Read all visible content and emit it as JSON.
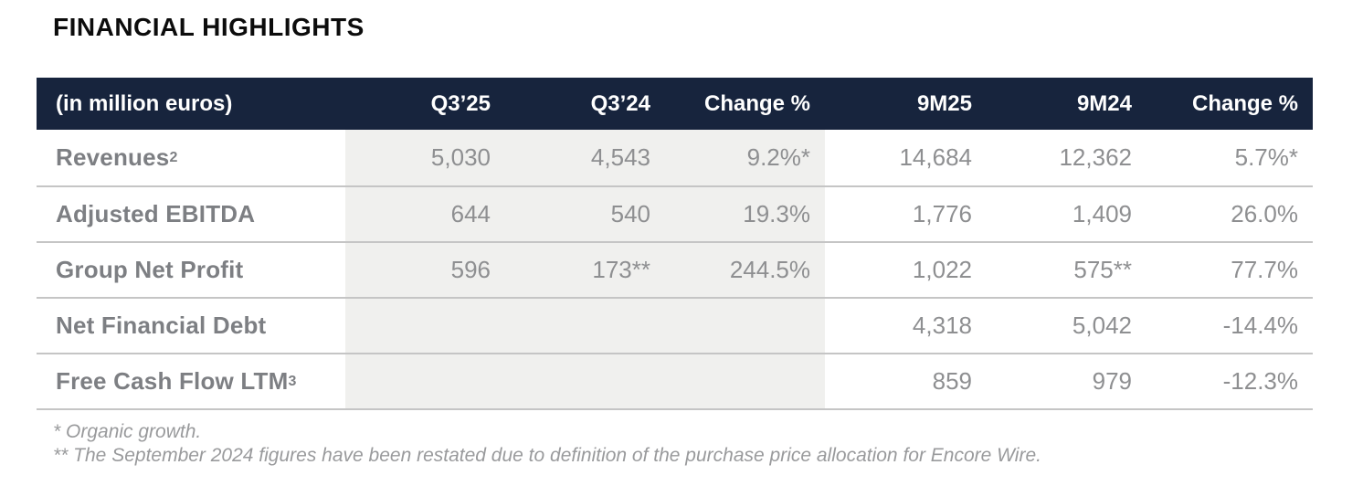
{
  "page": {
    "title": "FINANCIAL HIGHLIGHTS"
  },
  "colors": {
    "header_background": "#17243d",
    "header_text": "#ffffff",
    "quarter_columns_shading": "#f0f0ee",
    "row_separator": "#c5c5c5",
    "label_text": "#7d7f83",
    "value_text": "#8e8f91",
    "footnote_text": "#999a9c",
    "title_text": "#0c0c0c"
  },
  "table": {
    "unit_label": "(in million euros)",
    "columns": [
      "Q3’25",
      "Q3’24",
      "Change %",
      "9M25",
      "9M24",
      "Change %"
    ],
    "rows": [
      {
        "label": "Revenues",
        "label_sup": "2",
        "values": [
          "5,030",
          "4,543",
          "9.2%*",
          "14,684",
          "12,362",
          "5.7%*"
        ]
      },
      {
        "label": "Adjusted EBITDA",
        "label_sup": "",
        "values": [
          "644",
          "540",
          "19.3%",
          "1,776",
          "1,409",
          "26.0%"
        ]
      },
      {
        "label": "Group Net Profit",
        "label_sup": "",
        "values": [
          "596",
          "173**",
          "244.5%",
          "1,022",
          "575**",
          "77.7%"
        ]
      },
      {
        "label": "Net Financial Debt",
        "label_sup": "",
        "values": [
          "",
          "",
          "",
          "4,318",
          "5,042",
          "-14.4%"
        ]
      },
      {
        "label": "Free Cash Flow LTM",
        "label_sup": "3",
        "values": [
          "",
          "",
          "",
          "859",
          "979",
          "-12.3%"
        ]
      }
    ],
    "footnotes": [
      "* Organic growth.",
      "** The September 2024 figures have been restated due to definition of the purchase price allocation for Encore Wire."
    ]
  }
}
